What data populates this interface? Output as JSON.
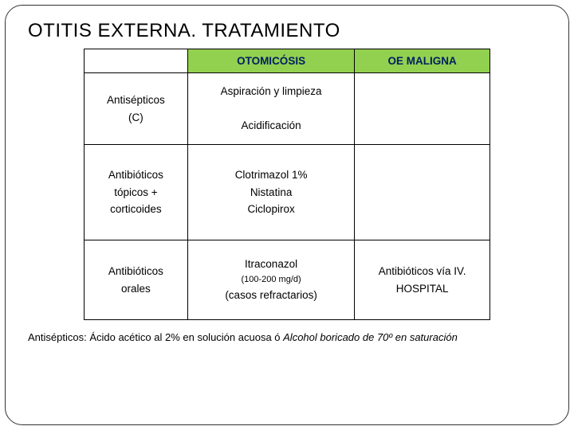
{
  "title": "OTITIS EXTERNA. TRATAMIENTO",
  "header": {
    "c0": "",
    "c1": "OTOMICÓSIS",
    "c2": "OE MALIGNA",
    "c1_bg": "#92d050",
    "c2_bg": "#92d050",
    "fg": "#002060"
  },
  "rows": [
    {
      "c0_lines": [
        "Antisépticos",
        "(C)"
      ],
      "c1_lines": [
        "Aspiración y limpieza",
        "",
        "Acidificación"
      ],
      "c2_lines": []
    },
    {
      "c0_lines": [
        "Antibióticos",
        "tópicos +",
        "corticoides"
      ],
      "c1_lines": [
        "Clotrimazol 1%",
        "Nistatina",
        "Ciclopirox"
      ],
      "c2_lines": []
    },
    {
      "c0_lines": [
        "Antibióticos",
        "orales"
      ],
      "c1_lines": [
        "Itraconazol",
        "(100-200 mg/d)",
        "(casos refractarios)"
      ],
      "c1_sub_idx": 1,
      "c2_lines": [
        "Antibióticos vía IV.",
        "HOSPITAL"
      ]
    }
  ],
  "footnote": {
    "plain": "Antisépticos: Ácido acético al 2% en solución acuosa  ó   ",
    "italic": "Alcohol boricado de 70º en saturación"
  }
}
